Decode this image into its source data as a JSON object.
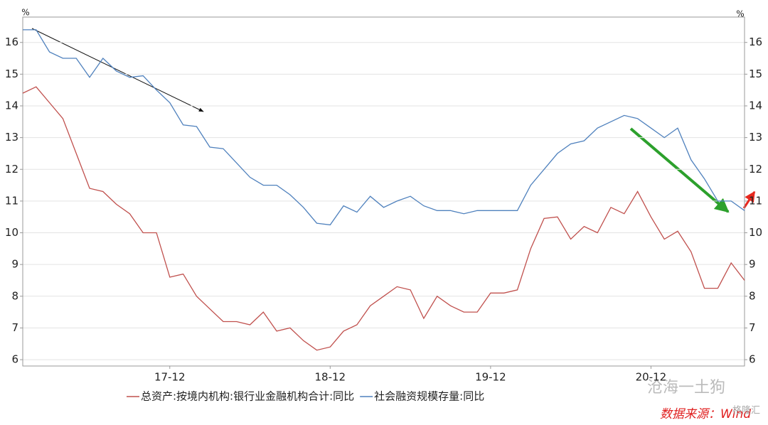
{
  "chart_data": {
    "type": "line",
    "y_unit": "%",
    "categories": [
      null,
      null,
      null,
      null,
      null,
      null,
      null,
      null,
      null,
      null,
      null,
      "17-12",
      null,
      null,
      null,
      null,
      null,
      null,
      null,
      null,
      null,
      null,
      null,
      "18-12",
      null,
      null,
      null,
      null,
      null,
      null,
      null,
      null,
      null,
      null,
      null,
      "19-12",
      null,
      null,
      null,
      null,
      null,
      null,
      null,
      null,
      null,
      null,
      null,
      "20-12",
      null,
      null,
      null,
      null,
      null,
      null,
      null
    ],
    "series": [
      {
        "name": "总资产:按境内机构:银行业金融机构合计:同比",
        "color": "#c0504d",
        "values": [
          14.4,
          14.6,
          14.1,
          13.6,
          12.5,
          11.4,
          11.3,
          10.9,
          10.6,
          10.0,
          10.0,
          8.6,
          8.7,
          8.0,
          7.6,
          7.2,
          7.2,
          7.1,
          7.5,
          6.9,
          7.0,
          6.6,
          6.3,
          6.4,
          6.9,
          7.1,
          7.7,
          8.0,
          8.3,
          8.2,
          7.3,
          8.0,
          7.7,
          7.5,
          7.5,
          8.1,
          8.1,
          8.2,
          9.5,
          10.45,
          10.5,
          9.8,
          10.2,
          10.0,
          10.8,
          10.6,
          11.3,
          10.5,
          9.8,
          10.05,
          9.4,
          8.25,
          8.25,
          9.05,
          8.5
        ]
      },
      {
        "name": "社会融资规模存量:同比",
        "color": "#4f81bd",
        "values": [
          16.4,
          16.4,
          15.7,
          15.5,
          15.5,
          14.9,
          15.5,
          15.1,
          14.9,
          14.95,
          14.5,
          14.1,
          13.4,
          13.35,
          12.7,
          12.65,
          12.2,
          11.75,
          11.5,
          11.5,
          11.2,
          10.8,
          10.3,
          10.25,
          10.85,
          10.65,
          11.15,
          10.8,
          11.0,
          11.15,
          10.85,
          10.7,
          10.7,
          10.6,
          10.7,
          10.7,
          10.7,
          10.7,
          11.5,
          12.0,
          12.5,
          12.8,
          12.9,
          13.3,
          13.5,
          13.7,
          13.6,
          13.3,
          13.0,
          13.3,
          12.3,
          11.7,
          11.0,
          11.0,
          10.7
        ]
      }
    ],
    "ylim": [
      5.8,
      16.8
    ],
    "yticks": [
      6,
      7,
      8,
      9,
      10,
      11,
      12,
      13,
      14,
      15,
      16
    ],
    "grid": true,
    "watermark": "沧海一土狗",
    "source": "数据来源：Wind",
    "logo": "格隆汇"
  }
}
